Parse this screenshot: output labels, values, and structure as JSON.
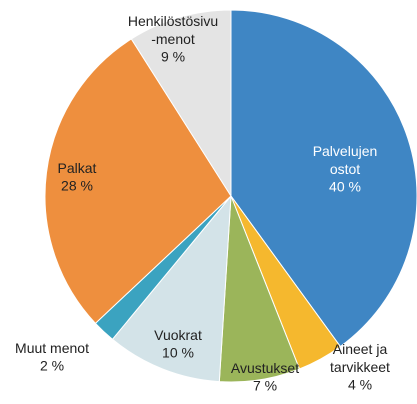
{
  "chart_data": {
    "type": "pie",
    "categories": [
      "Palvelujen\nostot",
      "Aineet ja\ntarvikkeet",
      "Avustukset",
      "Vuokrat",
      "Muut menot",
      "Palkat",
      "Henkilöstösivu\n-menot"
    ],
    "values": [
      40,
      4,
      7,
      10,
      2,
      28,
      9
    ],
    "value_labels": [
      "40 %",
      "4 %",
      "7 %",
      "10 %",
      "2 %",
      "28 %",
      "9 %"
    ],
    "colors": [
      "#3f86c4",
      "#f5b82e",
      "#9bb55a",
      "#d3e3e8",
      "#3ba3c0",
      "#ee8f3e",
      "#e4e4e4"
    ]
  }
}
